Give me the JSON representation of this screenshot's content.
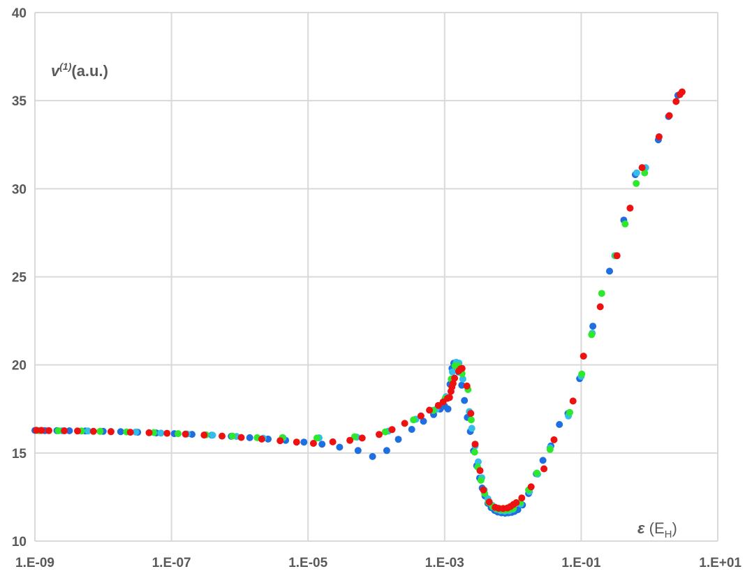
{
  "chart_data": {
    "type": "scatter",
    "title": "",
    "xscale": "log",
    "xlim": [
      1e-09,
      10
    ],
    "ylim": [
      10,
      40
    ],
    "grid": true,
    "legend": "none",
    "ylabel": {
      "symbol": "v",
      "superscript": "(1)",
      "unit": "(a.u.)"
    },
    "xlabel": {
      "symbol": "ε",
      "unit_open": " (E",
      "unit_sub": "H",
      "unit_close": ")"
    },
    "x_ticks": [
      {
        "value": 1e-09,
        "label": "1.E-09"
      },
      {
        "value": 1e-07,
        "label": "1.E-07"
      },
      {
        "value": 1e-05,
        "label": "1.E-05"
      },
      {
        "value": 0.001,
        "label": "1.E-03"
      },
      {
        "value": 0.1,
        "label": "1.E-01"
      },
      {
        "value": 10,
        "label": "1.E+01"
      }
    ],
    "y_ticks": [
      {
        "value": 10,
        "label": "10"
      },
      {
        "value": 15,
        "label": "15"
      },
      {
        "value": 20,
        "label": "20"
      },
      {
        "value": 25,
        "label": "25"
      },
      {
        "value": 30,
        "label": "30"
      },
      {
        "value": 35,
        "label": "35"
      },
      {
        "value": 40,
        "label": "40"
      }
    ],
    "series": [
      {
        "color": "#1f6fe0",
        "points": [
          [
            1e-09,
            16.28
          ],
          [
            1.4e-09,
            16.27
          ],
          [
            2.1e-09,
            16.27
          ],
          [
            3.2e-09,
            16.26
          ],
          [
            5.5e-09,
            16.25
          ],
          [
            1e-08,
            16.23
          ],
          [
            1.8e-08,
            16.21
          ],
          [
            3.2e-08,
            16.18
          ],
          [
            6e-08,
            16.14
          ],
          [
            1.1e-07,
            16.1
          ],
          [
            2e-07,
            16.06
          ],
          [
            3.9e-07,
            16.01
          ],
          [
            7.5e-07,
            15.95
          ],
          [
            1.4e-06,
            15.87
          ],
          [
            2.6e-06,
            15.79
          ],
          [
            4.7e-06,
            15.72
          ],
          [
            8.7e-06,
            15.62
          ],
          [
            1.6e-05,
            15.5
          ],
          [
            2.9e-05,
            15.33
          ],
          [
            5.4e-05,
            15.14
          ],
          [
            8.8e-05,
            14.8
          ],
          [
            0.000142,
            15.14
          ],
          [
            0.00021,
            15.78
          ],
          [
            0.00033,
            16.34
          ],
          [
            0.00049,
            16.8
          ],
          [
            0.00069,
            17.18
          ],
          [
            0.00086,
            17.49
          ],
          [
            0.001,
            17.66
          ],
          [
            0.00112,
            17.5
          ],
          [
            0.0012,
            18.9
          ],
          [
            0.00128,
            19.8
          ],
          [
            0.00136,
            20.1
          ],
          [
            0.00146,
            20.02
          ],
          [
            0.0016,
            19.6
          ],
          [
            0.00178,
            18.85
          ],
          [
            0.00195,
            17.98
          ],
          [
            0.00215,
            17.02
          ],
          [
            0.00238,
            16.22
          ],
          [
            0.00265,
            15.12
          ],
          [
            0.00295,
            14.28
          ],
          [
            0.00325,
            13.58
          ],
          [
            0.00355,
            13.01
          ],
          [
            0.0039,
            12.56
          ],
          [
            0.0043,
            12.14
          ],
          [
            0.0048,
            11.9
          ],
          [
            0.0054,
            11.74
          ],
          [
            0.006,
            11.65
          ],
          [
            0.0068,
            11.6
          ],
          [
            0.0077,
            11.58
          ],
          [
            0.0086,
            11.6
          ],
          [
            0.0096,
            11.63
          ],
          [
            0.0105,
            11.68
          ],
          [
            0.0118,
            11.78
          ],
          [
            0.0138,
            12.05
          ],
          [
            0.017,
            12.7
          ],
          [
            0.022,
            13.82
          ],
          [
            0.0275,
            14.58
          ],
          [
            0.036,
            15.4
          ],
          [
            0.048,
            16.62
          ],
          [
            0.064,
            17.24
          ],
          [
            0.095,
            19.22
          ],
          [
            0.148,
            22.2
          ],
          [
            0.26,
            25.32
          ],
          [
            0.42,
            28.22
          ],
          [
            0.62,
            30.8
          ],
          [
            1.35,
            32.78
          ],
          [
            1.9,
            34.1
          ],
          [
            2.6,
            35.3
          ]
        ]
      },
      {
        "color": "#33bde8",
        "points": [
          [
            1.2e-09,
            16.28
          ],
          [
            2.5e-09,
            16.26
          ],
          [
            6e-09,
            16.25
          ],
          [
            1.3e-08,
            16.22
          ],
          [
            3e-08,
            16.19
          ],
          [
            7e-08,
            16.13
          ],
          [
            1.7e-07,
            16.08
          ],
          [
            4e-07,
            16.01
          ],
          [
            9e-07,
            15.94
          ],
          [
            2.2e-06,
            15.84
          ],
          [
            4.3e-06,
            15.86
          ],
          [
            1.45e-05,
            15.86
          ],
          [
            5.2e-05,
            15.9
          ],
          [
            0.00015,
            16.24
          ],
          [
            0.00038,
            16.92
          ],
          [
            0.00075,
            17.48
          ],
          [
            0.00105,
            18.2
          ],
          [
            0.0013,
            19.6
          ],
          [
            0.00148,
            20.15
          ],
          [
            0.00162,
            20.1
          ],
          [
            0.00185,
            19.2
          ],
          [
            0.0023,
            17.35
          ],
          [
            0.0025,
            16.4
          ],
          [
            0.0028,
            15.4
          ],
          [
            0.0031,
            14.5
          ],
          [
            0.0035,
            13.6
          ],
          [
            0.0038,
            12.9
          ],
          [
            0.0043,
            12.4
          ],
          [
            0.005,
            12.02
          ],
          [
            0.0058,
            11.8
          ],
          [
            0.0066,
            11.72
          ],
          [
            0.0076,
            11.7
          ],
          [
            0.0088,
            11.72
          ],
          [
            0.01,
            11.8
          ],
          [
            0.013,
            12.1
          ],
          [
            0.0175,
            12.8
          ],
          [
            0.023,
            13.8
          ],
          [
            0.035,
            15.3
          ],
          [
            0.065,
            17.1
          ],
          [
            0.1,
            19.35
          ],
          [
            0.145,
            21.8
          ],
          [
            0.31,
            26.2
          ],
          [
            0.65,
            30.9
          ],
          [
            0.88,
            31.2
          ]
        ]
      },
      {
        "color": "#2ee82e",
        "points": [
          [
            1.15e-09,
            16.27
          ],
          [
            2.2e-09,
            16.26
          ],
          [
            4.8e-09,
            16.25
          ],
          [
            9e-09,
            16.23
          ],
          [
            2.2e-08,
            16.2
          ],
          [
            5.5e-08,
            16.16
          ],
          [
            1.25e-07,
            16.1
          ],
          [
            3.2e-07,
            16.03
          ],
          [
            7.8e-07,
            15.96
          ],
          [
            1.8e-06,
            15.87
          ],
          [
            4.2e-06,
            15.87
          ],
          [
            1.35e-05,
            15.85
          ],
          [
            4.8e-05,
            15.92
          ],
          [
            0.000135,
            16.2
          ],
          [
            0.00035,
            16.88
          ],
          [
            0.00068,
            17.42
          ],
          [
            0.00102,
            18.1
          ],
          [
            0.00125,
            19.2
          ],
          [
            0.00142,
            19.95
          ],
          [
            0.00158,
            19.95
          ],
          [
            0.0018,
            19.5
          ],
          [
            0.0022,
            18.6
          ],
          [
            0.00245,
            16.88
          ],
          [
            0.00275,
            15.05
          ],
          [
            0.00305,
            14.2
          ],
          [
            0.0034,
            13.45
          ],
          [
            0.00385,
            12.7
          ],
          [
            0.0044,
            12.2
          ],
          [
            0.0051,
            11.95
          ],
          [
            0.0059,
            11.82
          ],
          [
            0.0068,
            11.78
          ],
          [
            0.0078,
            11.76
          ],
          [
            0.009,
            11.8
          ],
          [
            0.0102,
            11.86
          ],
          [
            0.0128,
            12.2
          ],
          [
            0.017,
            12.9
          ],
          [
            0.0225,
            13.86
          ],
          [
            0.035,
            15.2
          ],
          [
            0.068,
            17.3
          ],
          [
            0.102,
            19.48
          ],
          [
            0.142,
            21.72
          ],
          [
            0.2,
            24.06
          ],
          [
            0.32,
            26.2
          ],
          [
            0.44,
            28.0
          ],
          [
            0.64,
            30.3
          ],
          [
            0.85,
            30.9
          ]
        ]
      },
      {
        "color": "#ee1111",
        "points": [
          [
            1.05e-09,
            16.29
          ],
          [
            1.25e-09,
            16.28
          ],
          [
            1.6e-09,
            16.27
          ],
          [
            2.7e-09,
            16.26
          ],
          [
            4.2e-09,
            16.25
          ],
          [
            7.2e-09,
            16.23
          ],
          [
            1.3e-08,
            16.21
          ],
          [
            2.5e-08,
            16.18
          ],
          [
            4.7e-08,
            16.15
          ],
          [
            8.6e-08,
            16.12
          ],
          [
            1.6e-07,
            16.07
          ],
          [
            3e-07,
            16.02
          ],
          [
            5.5e-07,
            15.96
          ],
          [
            1.05e-06,
            15.88
          ],
          [
            2.1e-06,
            15.79
          ],
          [
            3.9e-06,
            15.7
          ],
          [
            6.8e-06,
            15.62
          ],
          [
            1.2e-05,
            15.55
          ],
          [
            2.3e-05,
            15.63
          ],
          [
            4.1e-05,
            15.72
          ],
          [
            6.2e-05,
            15.85
          ],
          [
            0.00011,
            16.05
          ],
          [
            0.00017,
            16.33
          ],
          [
            0.00026,
            16.68
          ],
          [
            0.00045,
            17.1
          ],
          [
            0.0006,
            17.43
          ],
          [
            0.00081,
            17.7
          ],
          [
            0.00095,
            17.9
          ],
          [
            0.0011,
            18.1
          ],
          [
            0.00118,
            18.15
          ],
          [
            0.00124,
            18.5
          ],
          [
            0.00128,
            18.75
          ],
          [
            0.00133,
            18.95
          ],
          [
            0.0014,
            19.25
          ],
          [
            0.0016,
            19.65
          ],
          [
            0.00172,
            19.78
          ],
          [
            0.0018,
            19.8
          ],
          [
            0.00212,
            18.8
          ],
          [
            0.00242,
            17.25
          ],
          [
            0.0028,
            15.5
          ],
          [
            0.0033,
            14.0
          ],
          [
            0.0037,
            12.9
          ],
          [
            0.0045,
            12.22
          ],
          [
            0.0055,
            11.92
          ],
          [
            0.0062,
            11.86
          ],
          [
            0.0072,
            11.85
          ],
          [
            0.0083,
            11.88
          ],
          [
            0.0092,
            11.96
          ],
          [
            0.0102,
            12.08
          ],
          [
            0.0112,
            12.18
          ],
          [
            0.0135,
            12.45
          ],
          [
            0.0185,
            13.08
          ],
          [
            0.0285,
            14.1
          ],
          [
            0.04,
            15.75
          ],
          [
            0.076,
            17.95
          ],
          [
            0.108,
            20.5
          ],
          [
            0.19,
            23.3
          ],
          [
            0.335,
            26.2
          ],
          [
            0.52,
            28.9
          ],
          [
            0.78,
            31.2
          ],
          [
            1.38,
            32.95
          ],
          [
            1.95,
            34.15
          ],
          [
            2.45,
            34.95
          ],
          [
            2.8,
            35.35
          ],
          [
            3.0,
            35.5
          ]
        ]
      }
    ]
  }
}
